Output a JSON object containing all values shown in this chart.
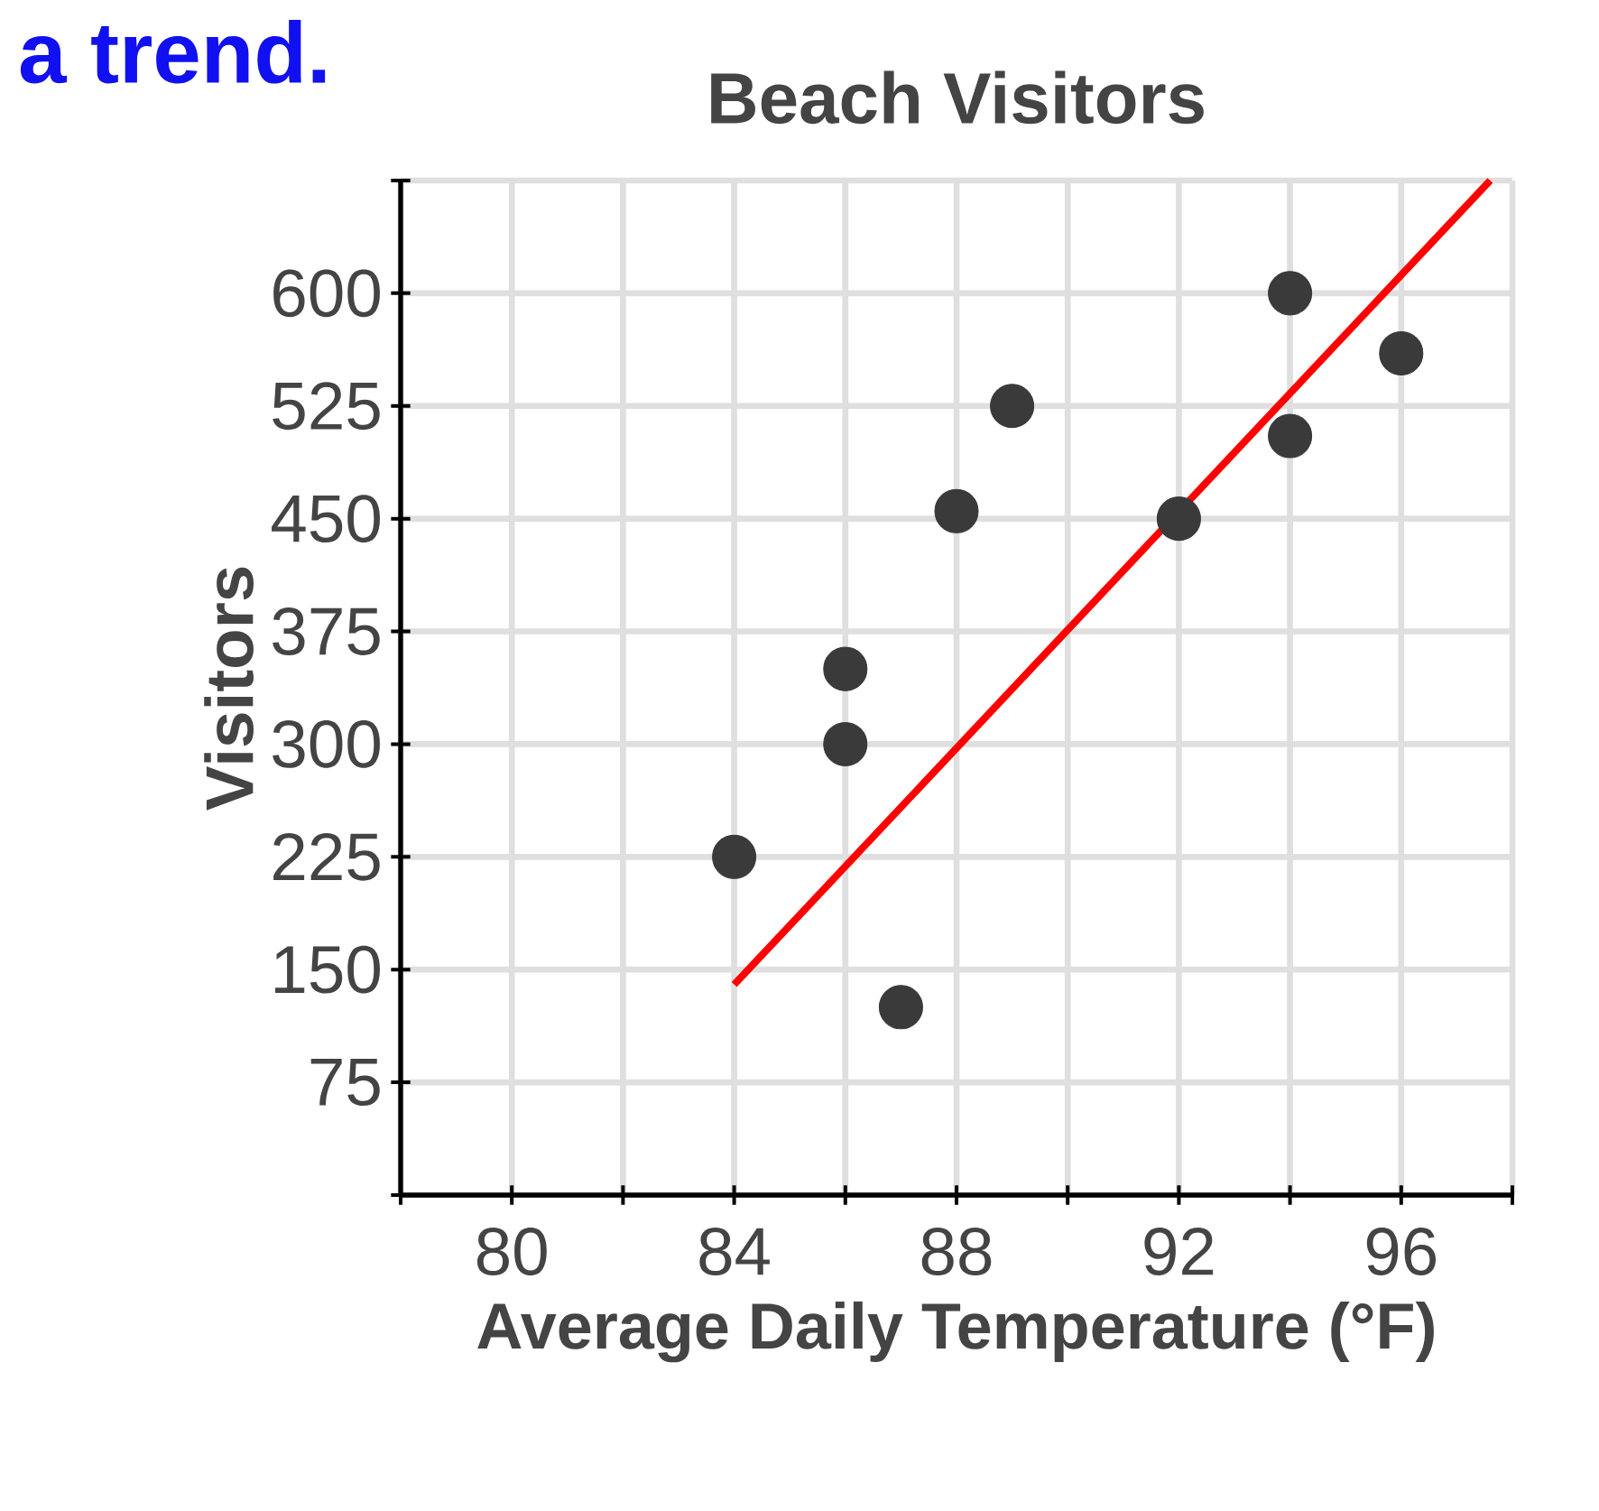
{
  "chart_data": {
    "type": "scatter",
    "title": "Beach Visitors",
    "xlabel": "Average Daily Temperature (°F)",
    "ylabel": "Visitors",
    "annotations": [
      "a trend."
    ],
    "series": [
      {
        "color": "#3a3a3a",
        "x": [
          84,
          86,
          86,
          87,
          88,
          89,
          92,
          94,
          94,
          96
        ],
        "values": [
          225,
          300,
          350,
          125,
          455,
          525,
          450,
          600,
          505,
          560
        ]
      },
      {
        "type": "line",
        "marker": "none",
        "color": "#ff0000",
        "x": [
          84,
          97.6
        ],
        "values": [
          140,
          675
        ]
      }
    ],
    "xlim": [
      78,
      98
    ],
    "ylim": [
      0,
      675
    ],
    "xticks": [
      {
        "value": 78,
        "label": null
      },
      80,
      {
        "value": 82,
        "label": null
      },
      84,
      {
        "value": 86,
        "label": null
      },
      88,
      {
        "value": 90,
        "label": null
      },
      92,
      {
        "value": 94,
        "label": null
      },
      96,
      {
        "value": 98,
        "label": null
      }
    ],
    "yticks": [
      {
        "value": 0,
        "label": null
      },
      75,
      150,
      225,
      300,
      375,
      450,
      525,
      600,
      {
        "value": 675,
        "label": null
      }
    ],
    "grid": true,
    "marker": "circle"
  }
}
